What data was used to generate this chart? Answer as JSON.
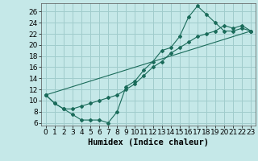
{
  "xlabel": "Humidex (Indice chaleur)",
  "background_color": "#c5e8e8",
  "grid_color": "#a0cccc",
  "line_color": "#1a6b5a",
  "xlim": [
    -0.5,
    23.5
  ],
  "ylim": [
    5.5,
    27.5
  ],
  "yticks": [
    6,
    8,
    10,
    12,
    14,
    16,
    18,
    20,
    22,
    24,
    26
  ],
  "xticks": [
    0,
    1,
    2,
    3,
    4,
    5,
    6,
    7,
    8,
    9,
    10,
    11,
    12,
    13,
    14,
    15,
    16,
    17,
    18,
    19,
    20,
    21,
    22,
    23
  ],
  "line1_x": [
    0,
    1,
    2,
    3,
    4,
    5,
    6,
    7,
    8,
    9,
    10,
    11,
    12,
    13,
    14,
    15,
    16,
    17,
    18,
    19,
    20,
    21,
    22,
    23
  ],
  "line1_y": [
    11,
    9.5,
    8.5,
    7.5,
    6.5,
    6.5,
    6.5,
    6.0,
    8.0,
    12.5,
    13.5,
    15.5,
    17.0,
    19.0,
    19.5,
    21.5,
    25.0,
    27.0,
    25.5,
    24.0,
    22.5,
    22.5,
    23.0,
    22.5
  ],
  "line2_x": [
    0,
    1,
    2,
    3,
    4,
    5,
    6,
    7,
    8,
    9,
    10,
    11,
    12,
    13,
    14,
    15,
    16,
    17,
    18,
    19,
    20,
    21,
    22,
    23
  ],
  "line2_y": [
    11,
    9.5,
    8.5,
    8.5,
    9.0,
    9.5,
    10.0,
    10.5,
    11.0,
    12.0,
    13.0,
    14.5,
    16.0,
    17.0,
    18.5,
    19.5,
    20.5,
    21.5,
    22.0,
    22.5,
    23.5,
    23.0,
    23.5,
    22.5
  ],
  "line3_x": [
    0,
    23
  ],
  "line3_y": [
    11,
    22.5
  ],
  "xlabel_fontsize": 7.5,
  "tick_fontsize": 6.5
}
